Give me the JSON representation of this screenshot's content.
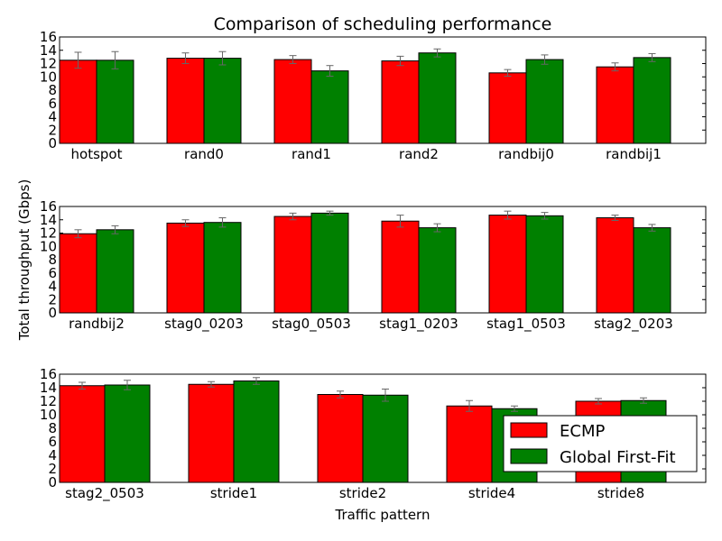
{
  "figure": {
    "title": "Comparison of scheduling performance",
    "ylabel": "Total throughput (Gbps)",
    "xlabel": "Traffic pattern",
    "legend": {
      "placement": "lower-right of bottom panel",
      "entries": [
        "ECMP",
        "Global First-Fit"
      ]
    }
  },
  "colors": {
    "ecmp": "#ff0000",
    "gff": "#008000",
    "errorbar": "#666666"
  },
  "chart_data": [
    {
      "type": "bar",
      "categories": [
        "hotspot",
        "rand0",
        "rand1",
        "rand2",
        "randbij0",
        "randbij1"
      ],
      "series": [
        {
          "name": "ECMP",
          "values": [
            12.5,
            12.8,
            12.6,
            12.4,
            10.6,
            11.5
          ],
          "errors": [
            1.2,
            0.8,
            0.6,
            0.7,
            0.5,
            0.6
          ]
        },
        {
          "name": "Global First-Fit",
          "values": [
            12.5,
            12.8,
            10.9,
            13.6,
            12.6,
            12.9
          ],
          "errors": [
            1.3,
            1.0,
            0.8,
            0.6,
            0.7,
            0.6
          ]
        }
      ],
      "ylim": [
        0,
        16
      ],
      "yticks": [
        0,
        2,
        4,
        6,
        8,
        10,
        12,
        14,
        16
      ]
    },
    {
      "type": "bar",
      "categories": [
        "randbij2",
        "stag0_0203",
        "stag0_0503",
        "stag1_0203",
        "stag1_0503",
        "stag2_0203"
      ],
      "series": [
        {
          "name": "ECMP",
          "values": [
            11.9,
            13.5,
            14.5,
            13.8,
            14.7,
            14.3
          ],
          "errors": [
            0.6,
            0.5,
            0.5,
            0.9,
            0.6,
            0.4
          ]
        },
        {
          "name": "Global First-Fit",
          "values": [
            12.5,
            13.6,
            15.0,
            12.8,
            14.6,
            12.8
          ],
          "errors": [
            0.6,
            0.7,
            0.3,
            0.6,
            0.5,
            0.5
          ]
        }
      ],
      "ylim": [
        0,
        16
      ],
      "yticks": [
        0,
        2,
        4,
        6,
        8,
        10,
        12,
        14,
        16
      ]
    },
    {
      "type": "bar",
      "categories": [
        "stag2_0503",
        "stride1",
        "stride2",
        "stride4",
        "stride8"
      ],
      "series": [
        {
          "name": "ECMP",
          "values": [
            14.3,
            14.5,
            13.0,
            11.3,
            12.0
          ],
          "errors": [
            0.5,
            0.4,
            0.5,
            0.8,
            0.4
          ]
        },
        {
          "name": "Global First-Fit",
          "values": [
            14.4,
            15.0,
            12.9,
            10.9,
            12.1
          ],
          "errors": [
            0.7,
            0.5,
            0.9,
            0.4,
            0.4
          ]
        }
      ],
      "ylim": [
        0,
        16
      ],
      "yticks": [
        0,
        2,
        4,
        6,
        8,
        10,
        12,
        14,
        16
      ]
    }
  ]
}
